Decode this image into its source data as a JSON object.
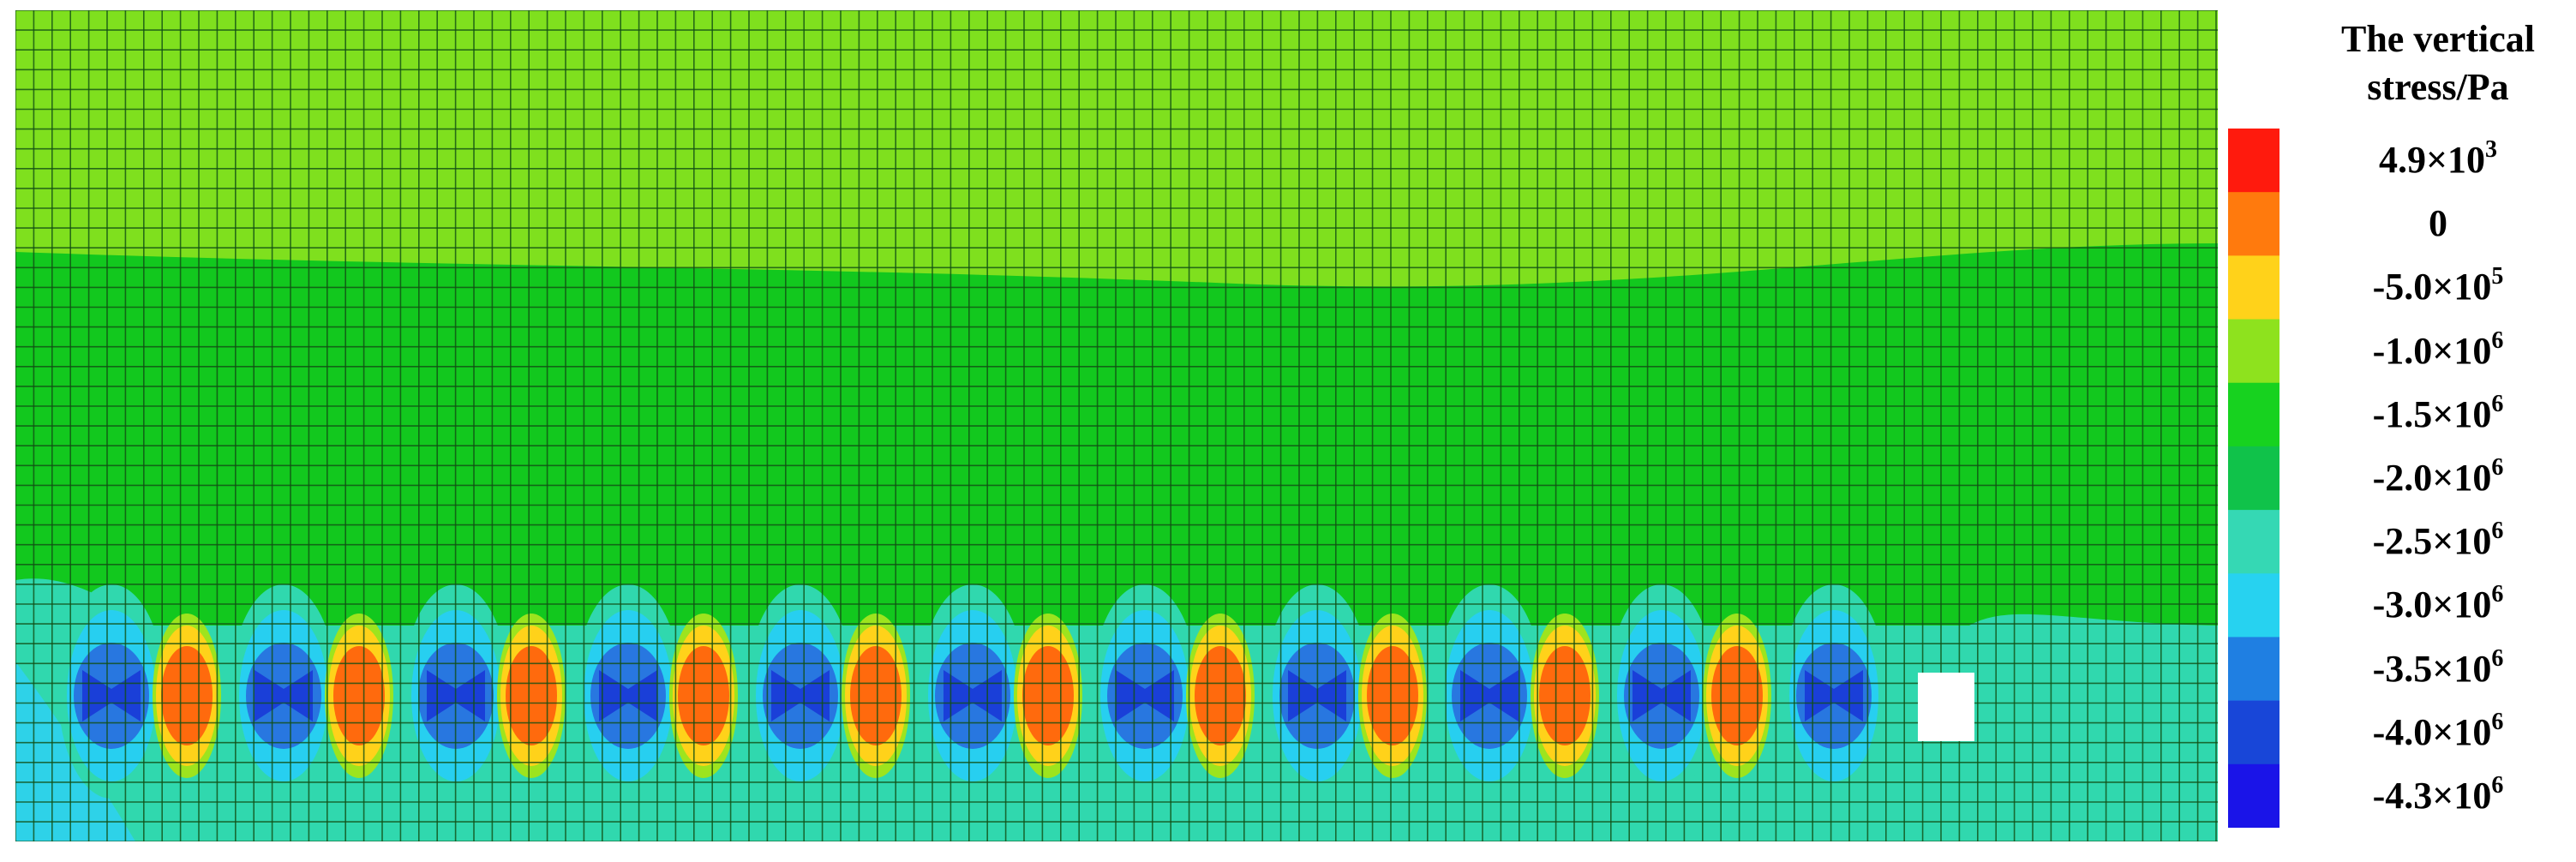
{
  "legend": {
    "title_lines": [
      "The vertical",
      "stress/Pa"
    ],
    "levels": [
      {
        "mantissa": "4.9×10",
        "exp": "3",
        "color": "#ff1a0d"
      },
      {
        "mantissa": "0",
        "exp": "",
        "color": "#ff7a0d"
      },
      {
        "mantissa": "-5.0×10",
        "exp": "5",
        "color": "#ffd21a"
      },
      {
        "mantissa": "-1.0×10",
        "exp": "6",
        "color": "#8ee21e"
      },
      {
        "mantissa": "-1.5×10",
        "exp": "6",
        "color": "#17d21f"
      },
      {
        "mantissa": "-2.0×10",
        "exp": "6",
        "color": "#10c24a"
      },
      {
        "mantissa": "-2.5×10",
        "exp": "6",
        "color": "#35d8b4"
      },
      {
        "mantissa": "-3.0×10",
        "exp": "6",
        "color": "#27d2f0"
      },
      {
        "mantissa": "-3.5×10",
        "exp": "6",
        "color": "#1f7fe2"
      },
      {
        "mantissa": "-4.0×10",
        "exp": "6",
        "color": "#1846d8"
      },
      {
        "mantissa": "-4.3×10",
        "exp": "6",
        "color": "#1a14e8"
      }
    ]
  },
  "contour": {
    "colors": {
      "top_zone": "#7fe01e",
      "middle_zone": "#12c81e",
      "low_zone": "#30d8ae",
      "bottom_edge": "#2ed2e8",
      "pillar_inner": "#27cff0",
      "pillar_mid": "#2877e0",
      "pillar_core": "#1a3fd8",
      "tension_outer": "#ffd21a",
      "tension_core": "#ff6a0d",
      "tension_rim": "#9de41e",
      "mesh_line": "#124f14"
    },
    "pillar_count": 11,
    "tension_zone_count": 10
  }
}
